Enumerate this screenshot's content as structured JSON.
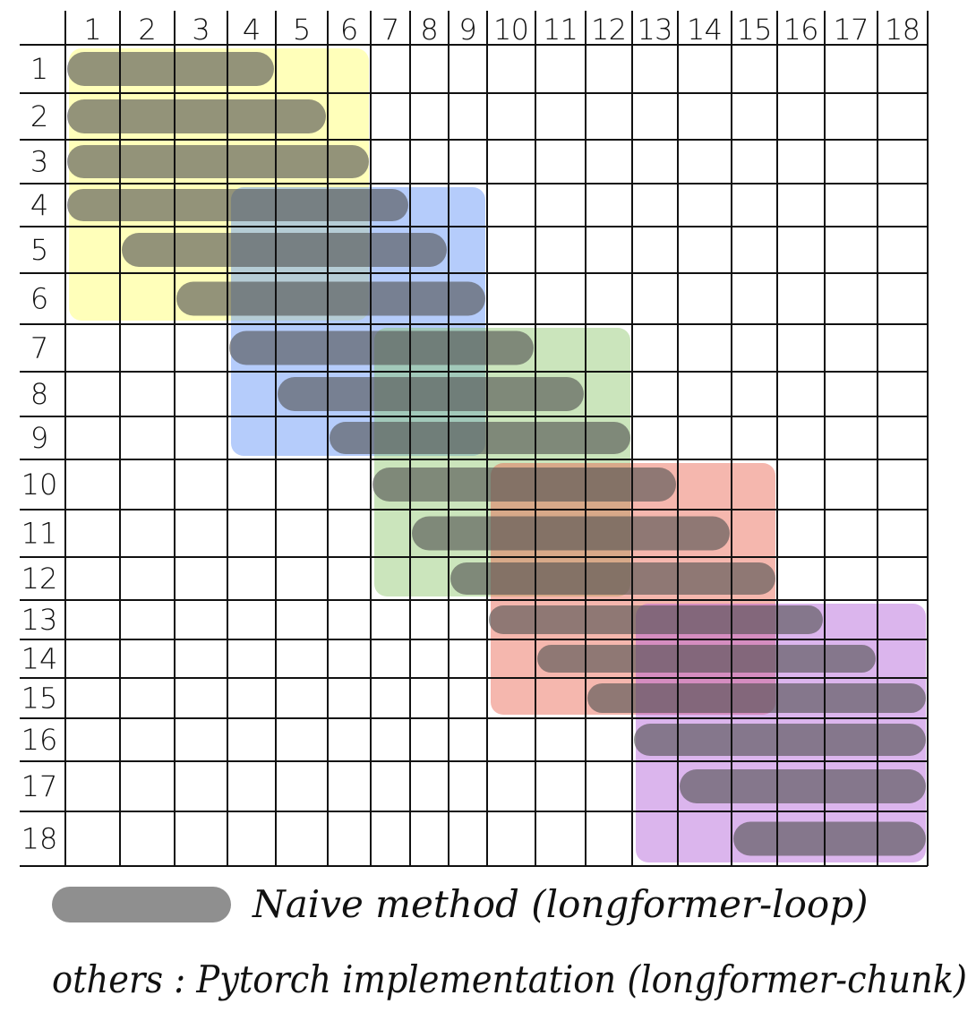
{
  "grid": {
    "columns": [
      "1",
      "2",
      "3",
      "4",
      "5",
      "6",
      "7",
      "8",
      "9",
      "10",
      "11",
      "12",
      "13",
      "14",
      "15",
      "16",
      "17",
      "18"
    ],
    "rows": [
      "1",
      "2",
      "3",
      "4",
      "5",
      "6",
      "7",
      "8",
      "9",
      "10",
      "11",
      "12",
      "13",
      "14",
      "15",
      "16",
      "17",
      "18"
    ]
  },
  "chunks": [
    {
      "color": "#ffff66",
      "col_start": 1,
      "col_end": 6,
      "row_start": 1,
      "row_end": 6
    },
    {
      "color": "#5b8ff7",
      "col_start": 4,
      "col_end": 9,
      "row_start": 4,
      "row_end": 9
    },
    {
      "color": "#8cc66a",
      "col_start": 7,
      "col_end": 12,
      "row_start": 7,
      "row_end": 12
    },
    {
      "color": "#e8604c",
      "col_start": 10,
      "col_end": 15,
      "row_start": 10,
      "row_end": 15
    },
    {
      "color": "#b05ad8",
      "col_start": 13,
      "col_end": 18,
      "row_start": 13,
      "row_end": 18
    }
  ],
  "naive_bars": [
    {
      "row": 1,
      "col_start": 1,
      "col_end": 4
    },
    {
      "row": 2,
      "col_start": 1,
      "col_end": 5
    },
    {
      "row": 3,
      "col_start": 1,
      "col_end": 6
    },
    {
      "row": 4,
      "col_start": 1,
      "col_end": 7
    },
    {
      "row": 5,
      "col_start": 2,
      "col_end": 8
    },
    {
      "row": 6,
      "col_start": 3,
      "col_end": 9
    },
    {
      "row": 7,
      "col_start": 4,
      "col_end": 10
    },
    {
      "row": 8,
      "col_start": 5,
      "col_end": 11
    },
    {
      "row": 9,
      "col_start": 6,
      "col_end": 12
    },
    {
      "row": 10,
      "col_start": 7,
      "col_end": 13
    },
    {
      "row": 11,
      "col_start": 8,
      "col_end": 14
    },
    {
      "row": 12,
      "col_start": 9,
      "col_end": 15
    },
    {
      "row": 13,
      "col_start": 10,
      "col_end": 16
    },
    {
      "row": 14,
      "col_start": 11,
      "col_end": 17
    },
    {
      "row": 15,
      "col_start": 12,
      "col_end": 18
    },
    {
      "row": 16,
      "col_start": 13,
      "col_end": 18
    },
    {
      "row": 17,
      "col_start": 14,
      "col_end": 18
    },
    {
      "row": 18,
      "col_start": 15,
      "col_end": 18
    }
  ],
  "legend": {
    "naive_label": "Naive method (longformer-loop)",
    "others_label": "others : Pytorch implementation (longformer-chunk)",
    "naive_color": "#8f8f8f"
  }
}
